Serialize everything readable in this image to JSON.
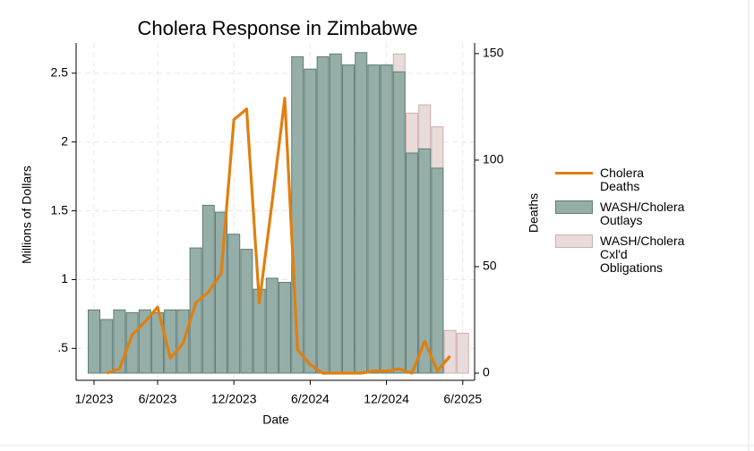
{
  "chart_data": {
    "type": "bar",
    "title": "Cholera Response in Zimbabwe",
    "x_label": "Date",
    "y_label": "Millions of Dollars",
    "y2_label": "Deaths",
    "categories": [
      "1/2023",
      "2/2023",
      "3/2023",
      "4/2023",
      "5/2023",
      "6/2023",
      "7/2023",
      "8/2023",
      "9/2023",
      "10/2023",
      "11/2023",
      "12/2023",
      "1/2024",
      "2/2024",
      "3/2024",
      "4/2024",
      "5/2024",
      "6/2024",
      "7/2024",
      "8/2024",
      "9/2024",
      "10/2024",
      "11/2024",
      "12/2024",
      "1/2025",
      "2/2025",
      "3/2025",
      "4/2025",
      "5/2025",
      "6/2025"
    ],
    "xticks": [
      "1/2023",
      "6/2023",
      "12/2023",
      "6/2024",
      "12/2024",
      "6/2025"
    ],
    "series": [
      {
        "name": "Cholera Deaths",
        "type": "line",
        "axis": "y2",
        "color": "#e07f10",
        "values": [
          null,
          0,
          2,
          18,
          24,
          31,
          7,
          14,
          33,
          38,
          47,
          119,
          124,
          33,
          80,
          129,
          11,
          4,
          0,
          0,
          0,
          0,
          1,
          1,
          2,
          0,
          15,
          1,
          8,
          null
        ]
      },
      {
        "name": "WASH/Cholera Outlays",
        "type": "bar",
        "color": "#96aea8",
        "edge": "#5f7d76",
        "values": [
          0.78,
          0.71,
          0.78,
          0.76,
          0.78,
          0.76,
          0.78,
          0.78,
          1.23,
          1.54,
          1.49,
          1.33,
          1.22,
          0.93,
          1.01,
          0.98,
          2.62,
          2.53,
          2.62,
          2.64,
          2.56,
          2.65,
          2.56,
          2.56,
          2.51,
          1.92,
          1.95,
          1.81,
          null,
          null
        ]
      },
      {
        "name": "WASH/Cholera Cxl'd Obligations",
        "type": "bar",
        "color": "#e9dbd9",
        "edge": "#cdb0ad",
        "values": [
          null,
          null,
          null,
          null,
          null,
          null,
          null,
          null,
          null,
          null,
          null,
          null,
          null,
          null,
          null,
          null,
          null,
          null,
          null,
          null,
          null,
          null,
          null,
          null,
          2.64,
          2.21,
          2.27,
          2.11,
          0.63,
          0.61
        ]
      }
    ],
    "ylim": [
      0.32,
      2.72
    ],
    "yticks": [
      {
        "value": 0.5,
        "label": ".5"
      },
      1,
      1.5,
      2,
      2.5
    ],
    "y2lim": [
      0,
      155
    ],
    "y2ticks": [
      0,
      50,
      100,
      150
    ],
    "grid": true
  }
}
